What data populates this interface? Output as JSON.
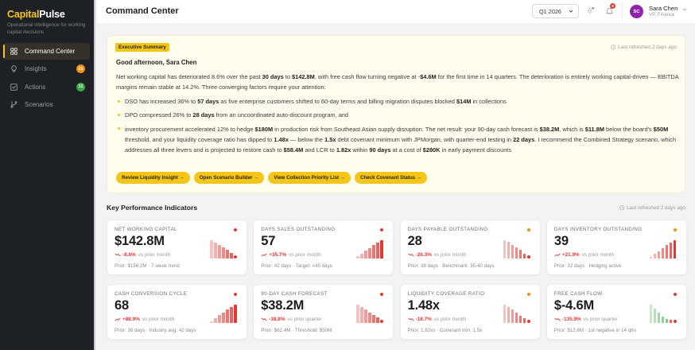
{
  "sidebar": {
    "brand_part1": "Capital",
    "brand_part2": "Pulse",
    "tagline": "Operational intelligence for working capital decisions",
    "items": [
      {
        "label": "Command Center",
        "icon": "grid-icon",
        "active": true
      },
      {
        "label": "Insights",
        "icon": "lightbulb-icon",
        "badge": "21",
        "badge_color": "#f29111"
      },
      {
        "label": "Actions",
        "icon": "checkbox-icon",
        "badge": "11",
        "badge_color": "#3aa845"
      },
      {
        "label": "Scenarios",
        "icon": "branch-icon"
      }
    ]
  },
  "header": {
    "title": "Command Center",
    "period": "Q1 2026",
    "notifications_count": "8",
    "user": {
      "initials": "SC",
      "name": "Sara Chen",
      "role": "VP, Finance"
    }
  },
  "executive_summary": {
    "badge": "Executive Summary",
    "refreshed": "Last refreshed 2 days ago",
    "greeting": "Good afternoon, Sara Chen",
    "intro": [
      {
        "t": "Net working capital has deteriorated 8.6% over the past "
      },
      {
        "t": "30 days",
        "b": true
      },
      {
        "t": " to "
      },
      {
        "t": "$142.8M",
        "b": true
      },
      {
        "t": ", with free cash flow turning negative at -"
      },
      {
        "t": "$4.6M",
        "b": true
      },
      {
        "t": " for the first time in 14 quarters. The deterioration is entirely working capital-driven — EBITDA margins remain stable at 14.2%. Three converging factors require your attention:"
      }
    ],
    "bullets": [
      [
        {
          "t": "DSO has increased 36% to "
        },
        {
          "t": "57 days",
          "b": true
        },
        {
          "t": " as five enterprise customers shifted to 60-day terms and billing migration disputes blocked "
        },
        {
          "t": "$14M",
          "b": true
        },
        {
          "t": " in collections"
        }
      ],
      [
        {
          "t": "DPO compressed 26% to "
        },
        {
          "t": "28 days",
          "b": true
        },
        {
          "t": " from an uncoordinated auto-discount program, and"
        }
      ],
      [
        {
          "t": "inventory procurement accelerated 12% to hedge "
        },
        {
          "t": "$180M",
          "b": true
        },
        {
          "t": " in production risk from Southeast Asian supply disruption. The net result: your 90-day cash forecast is "
        },
        {
          "t": "$38.2M",
          "b": true
        },
        {
          "t": ", which is "
        },
        {
          "t": "$11.8M",
          "b": true
        },
        {
          "t": " below the board's "
        },
        {
          "t": "$50M",
          "b": true
        },
        {
          "t": " threshold, and your liquidity coverage ratio has dipped to "
        },
        {
          "t": "1.48x",
          "b": true
        },
        {
          "t": " — below the "
        },
        {
          "t": "1.5x",
          "b": true
        },
        {
          "t": " debt covenant minimum with JPMorgan, with quarter-end testing in "
        },
        {
          "t": "22 days",
          "b": true
        },
        {
          "t": ". I recommend the Combined Strategy scenario, which addresses all three levers and is projected to restore cash to "
        },
        {
          "t": "$58.4M",
          "b": true
        },
        {
          "t": " and LCR to "
        },
        {
          "t": "1.82x",
          "b": true
        },
        {
          "t": " within "
        },
        {
          "t": "90 days",
          "b": true
        },
        {
          "t": " at a cost of "
        },
        {
          "t": "$280K",
          "b": true
        },
        {
          "t": " in early payment discounts"
        }
      ]
    ],
    "actions": [
      "Review Liquidity Insight →",
      "Open Scenario Builder →",
      "View Collection Priority List →",
      "Check Covenant Status →"
    ]
  },
  "kpis": {
    "title": "Key Performance Indicators",
    "refreshed": "Last refreshed 2 days ago",
    "cards": [
      {
        "label": "NET WORKING CAPITAL",
        "value": "$142.8M",
        "change": "-8.6%",
        "trend": "down",
        "period": "vs prior month",
        "footer": "Prior: $156.2M · 7-week trend",
        "status_color": "#e53935",
        "spark": [
          100,
          88,
          76,
          62,
          48,
          32,
          14
        ],
        "spark_color": "#e53935"
      },
      {
        "label": "DAYS SALES OUTSTANDING",
        "value": "57",
        "change": "+35.7%",
        "trend": "up",
        "period": "vs prior month",
        "footer": "Prior: 42 days · Target: <45 days",
        "status_color": "#e53935",
        "spark": [
          12,
          28,
          42,
          58,
          72,
          86,
          100
        ],
        "spark_color": "#e53935"
      },
      {
        "label": "DAYS PAYABLE OUTSTANDING",
        "value": "28",
        "change": "-26.3%",
        "trend": "down",
        "period": "vs prior month",
        "footer": "Prior: 38 days · Benchmark: 35-40 days",
        "status_color": "#f29111",
        "spark": [
          100,
          90,
          76,
          62,
          46,
          26,
          14
        ],
        "spark_color": "#e53935"
      },
      {
        "label": "DAYS INVENTORY OUTSTANDING",
        "value": "39",
        "change": "+21.9%",
        "trend": "up",
        "period": "vs prior month",
        "footer": "Prior: 32 days · Hedging active",
        "status_color": "#f29111",
        "spark": [
          10,
          26,
          40,
          58,
          72,
          88,
          100
        ],
        "spark_color": "#e53935"
      },
      {
        "label": "CASH CONVERSION CYCLE",
        "value": "68",
        "change": "+88.9%",
        "trend": "up",
        "period": "vs prior month",
        "footer": "Prior: 36 days · Industry avg: 42 days",
        "status_color": "#e53935",
        "spark": [
          10,
          26,
          42,
          58,
          72,
          88,
          100
        ],
        "spark_color": "#e53935"
      },
      {
        "label": "90-DAY CASH FORECAST",
        "value": "$38.2M",
        "change": "-38.8%",
        "trend": "down",
        "period": "vs prior quarter",
        "footer": "Prior: $62.4M · Threshold: $50M",
        "status_color": "#e53935",
        "spark": [
          100,
          86,
          72,
          58,
          44,
          30,
          14
        ],
        "spark_color": "#e53935"
      },
      {
        "label": "LIQUIDITY COVERAGE RATIO",
        "value": "1.48x",
        "change": "-18.7%",
        "trend": "down",
        "period": "vs prior month",
        "footer": "Prior: 1.82xx · Covenant min: 1.5x",
        "status_color": "#f29111",
        "spark": [
          100,
          88,
          72,
          56,
          40,
          24,
          12
        ],
        "spark_color": "#e53935"
      },
      {
        "label": "FREE CASH FLOW",
        "value": "$-4.6M",
        "change": "-135.9%",
        "trend": "down",
        "period": "vs prior quarter",
        "footer": "Prior: $12.8M · 1st negative in 14 qtrs",
        "status_color": "#e53935",
        "spark": [
          100,
          80,
          56,
          36,
          22,
          16,
          26
        ],
        "spark_color": "#4caf50",
        "spark_neg_from": 5
      }
    ]
  }
}
